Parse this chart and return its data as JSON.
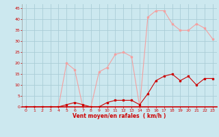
{
  "x": [
    0,
    1,
    2,
    3,
    4,
    5,
    6,
    7,
    8,
    9,
    10,
    11,
    12,
    13,
    14,
    15,
    16,
    17,
    18,
    19,
    20,
    21,
    22,
    23
  ],
  "y_rafales": [
    0,
    0,
    0,
    0,
    0,
    20,
    17,
    0,
    0,
    16,
    18,
    24,
    25,
    23,
    0,
    41,
    44,
    44,
    38,
    35,
    35,
    38,
    36,
    31
  ],
  "y_moyen": [
    0,
    0,
    0,
    0,
    0,
    1,
    2,
    1,
    0,
    0,
    2,
    3,
    3,
    3,
    1,
    6,
    12,
    14,
    15,
    12,
    14,
    10,
    13,
    13
  ],
  "bg_color": "#cce8ef",
  "grid_color": "#aacdd6",
  "line_color_rafales": "#f4a0a0",
  "line_color_moyen": "#cc0000",
  "xlabel": "Vent moyen/en rafales  ( km/h )",
  "ylim": [
    0,
    47
  ],
  "xlim": [
    -0.5,
    23.5
  ],
  "yticks": [
    0,
    5,
    10,
    15,
    20,
    25,
    30,
    35,
    40,
    45
  ],
  "xticks": [
    0,
    1,
    2,
    3,
    4,
    5,
    6,
    7,
    8,
    9,
    10,
    11,
    12,
    13,
    14,
    15,
    16,
    17,
    18,
    19,
    20,
    21,
    22,
    23
  ]
}
